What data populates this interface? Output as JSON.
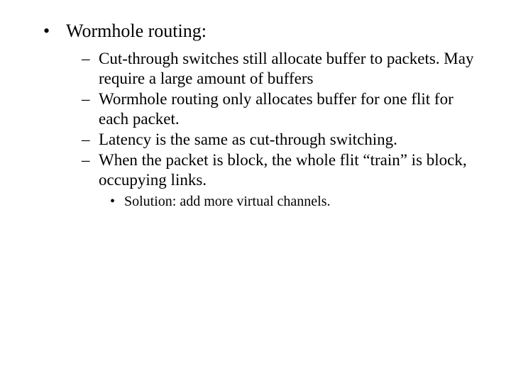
{
  "heading": "Wormhole routing:",
  "points": {
    "p1": "Cut-through switches still allocate buffer to packets. May require a large amount of buffers",
    "p2": "Wormhole routing only allocates buffer for one flit for each packet.",
    "p3": "Latency is the same as cut-through switching.",
    "p4": "When the packet is block, the whole flit “train” is block, occupying links."
  },
  "sub": {
    "s1": "Solution: add more virtual channels."
  },
  "colors": {
    "background": "#ffffff",
    "text": "#000000"
  },
  "typography": {
    "font_family": "Times New Roman",
    "level1_fontsize": 26,
    "level2_fontsize": 23,
    "level3_fontsize": 20
  },
  "bullets": {
    "level1": "•",
    "level2": "–",
    "level3": "•"
  }
}
